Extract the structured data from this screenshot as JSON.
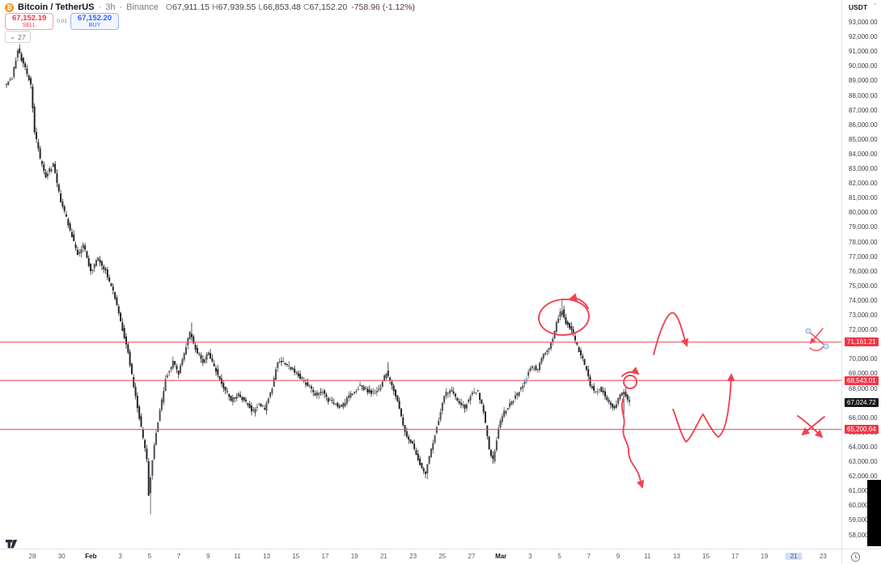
{
  "colors": {
    "accent_red": "#f23645",
    "line_red": "#f0525f",
    "drawing_red": "#ef4352",
    "buy_blue": "#2962ff",
    "candle_down": "#23242a",
    "candle_up": "#4a4d55",
    "candle_accent": "#68bdd4",
    "label_dark_bg": "#17181b",
    "axis_text": "#3a3e4a",
    "separator": "#e0e3eb",
    "time_highlight": "#cfe0f7",
    "btc_orange": "#f7931a",
    "handle_fill": "#dbe7f3",
    "handle_stroke": "#8fb0cf"
  },
  "header": {
    "symbol": "Bitcoin / TetherUS",
    "separator": "·",
    "interval": "3h",
    "exchange": "Binance",
    "ohlc": {
      "o_label": "O",
      "o_value": "67,911.15",
      "h_label": "H",
      "h_value": "67,939.55",
      "l_label": "L",
      "l_value": "66,853.48",
      "c_label": "C",
      "c_value": "67,152.20",
      "change": "-758.96 (-1.12%)"
    },
    "sell_button": {
      "price": "67,152.19",
      "label": "SELL"
    },
    "spread": "0.01",
    "buy_button": {
      "price": "67,152.20",
      "label": "BUY"
    },
    "drawings_count": "27",
    "drawings_chevron": "⌄"
  },
  "price_axis": {
    "currency": "USDT",
    "caret": "⌃"
  },
  "chart_data": {
    "type": "candlestick",
    "title": "Bitcoin / TetherUS 3h Binance",
    "ylabel": "Price (USDT)",
    "ylim": [
      58000,
      93000
    ],
    "y_step": 1000,
    "bars": 334,
    "x_tick_labels": [
      "28",
      "30",
      "Feb",
      "3",
      "5",
      "7",
      "9",
      "11",
      "13",
      "15",
      "17",
      "19",
      "21",
      "23",
      "25",
      "27",
      "Mar",
      "3",
      "5",
      "7",
      "9",
      "11",
      "13",
      "15",
      "17",
      "19",
      "21",
      "23"
    ],
    "month_indices": [
      2,
      16
    ],
    "x_highlight_index": 26,
    "levels": [
      71161.21,
      68543.01,
      65200.64
    ],
    "last_price": 67024.72,
    "ohlc_current": {
      "open": 67911.15,
      "high": 67939.55,
      "low": 66853.48,
      "close": 67152.2,
      "change": -758.96,
      "change_pct": -1.12
    },
    "price_anchors": [
      [
        0,
        88700
      ],
      [
        4,
        89200
      ],
      [
        7,
        91100
      ],
      [
        11,
        89800
      ],
      [
        14,
        88700
      ],
      [
        16,
        85600
      ],
      [
        19,
        83600
      ],
      [
        22,
        82500
      ],
      [
        26,
        83300
      ],
      [
        30,
        80800
      ],
      [
        35,
        78800
      ],
      [
        39,
        77100
      ],
      [
        42,
        77800
      ],
      [
        46,
        76000
      ],
      [
        50,
        76900
      ],
      [
        54,
        76000
      ],
      [
        58,
        74600
      ],
      [
        62,
        72600
      ],
      [
        66,
        70400
      ],
      [
        69,
        68100
      ],
      [
        73,
        65300
      ],
      [
        76,
        63100
      ],
      [
        77,
        60800
      ],
      [
        80,
        64200
      ],
      [
        83,
        66400
      ],
      [
        86,
        68700
      ],
      [
        90,
        69800
      ],
      [
        93,
        69000
      ],
      [
        96,
        70400
      ],
      [
        99,
        71800
      ],
      [
        102,
        70700
      ],
      [
        106,
        69800
      ],
      [
        109,
        70400
      ],
      [
        112,
        69500
      ],
      [
        117,
        68100
      ],
      [
        121,
        67200
      ],
      [
        125,
        67600
      ],
      [
        129,
        67000
      ],
      [
        133,
        66400
      ],
      [
        136,
        67000
      ],
      [
        139,
        66600
      ],
      [
        143,
        68100
      ],
      [
        146,
        69900
      ],
      [
        149,
        69800
      ],
      [
        152,
        69500
      ],
      [
        156,
        69100
      ],
      [
        159,
        68600
      ],
      [
        163,
        68100
      ],
      [
        166,
        67600
      ],
      [
        170,
        67800
      ],
      [
        173,
        67200
      ],
      [
        176,
        67000
      ],
      [
        180,
        66700
      ],
      [
        183,
        67300
      ],
      [
        187,
        67800
      ],
      [
        190,
        68200
      ],
      [
        194,
        67800
      ],
      [
        197,
        67700
      ],
      [
        201,
        68100
      ],
      [
        204,
        69100
      ],
      [
        208,
        67800
      ],
      [
        211,
        66700
      ],
      [
        214,
        65000
      ],
      [
        218,
        64200
      ],
      [
        221,
        63100
      ],
      [
        225,
        62200
      ],
      [
        228,
        63900
      ],
      [
        232,
        65900
      ],
      [
        235,
        67600
      ],
      [
        239,
        67800
      ],
      [
        242,
        67100
      ],
      [
        246,
        66700
      ],
      [
        249,
        67600
      ],
      [
        253,
        67800
      ],
      [
        256,
        66400
      ],
      [
        259,
        63900
      ],
      [
        261,
        63100
      ],
      [
        264,
        65300
      ],
      [
        267,
        66400
      ],
      [
        271,
        67000
      ],
      [
        274,
        67600
      ],
      [
        278,
        68400
      ],
      [
        281,
        69500
      ],
      [
        285,
        69300
      ],
      [
        288,
        70400
      ],
      [
        291,
        70700
      ],
      [
        293,
        71500
      ],
      [
        296,
        72900
      ],
      [
        298,
        73300
      ],
      [
        300,
        72500
      ],
      [
        303,
        72100
      ],
      [
        305,
        71200
      ],
      [
        308,
        70300
      ],
      [
        311,
        69300
      ],
      [
        313,
        68200
      ],
      [
        316,
        67700
      ],
      [
        318,
        68000
      ],
      [
        321,
        67500
      ],
      [
        324,
        67000
      ],
      [
        326,
        66600
      ],
      [
        329,
        67600
      ],
      [
        331,
        67700
      ],
      [
        333,
        67150
      ]
    ],
    "wick_events": [
      {
        "i": 77,
        "low": 59400
      },
      {
        "i": 99,
        "high": 72500
      },
      {
        "i": 204,
        "high": 69800
      },
      {
        "i": 225,
        "low": 61800
      },
      {
        "i": 260,
        "low": 62850
      },
      {
        "i": 297,
        "high": 74050
      },
      {
        "i": 330,
        "low": 65900
      }
    ],
    "accent_bar_indices": [
      278
    ],
    "annotations": [
      {
        "name": "circle-top-highlight",
        "desc": "red ellipse with curl arrow around local top near 73,300"
      },
      {
        "name": "rejection-spike-arrow",
        "desc": "red arc over 71,161.21 level ending in a down arrow"
      },
      {
        "name": "current-price-circle",
        "desc": "small red circle with arrow at last candle retesting 68,543.01"
      },
      {
        "name": "breakdown-arrow",
        "desc": "wavy red arrow from last candle down toward 60,000"
      },
      {
        "name": "w-bounce-arrow",
        "desc": "red W-shaped path along 65,200.64 level arrowing up through 68,543.01"
      },
      {
        "name": "invalidation-cross-upper",
        "desc": "crossed-out mark on 71,161.21 level with selection handles"
      },
      {
        "name": "invalidation-cross-lower",
        "desc": "crossed-out arrows over 65,200.64 level"
      }
    ]
  },
  "watermark": {
    "logo": "TV"
  }
}
